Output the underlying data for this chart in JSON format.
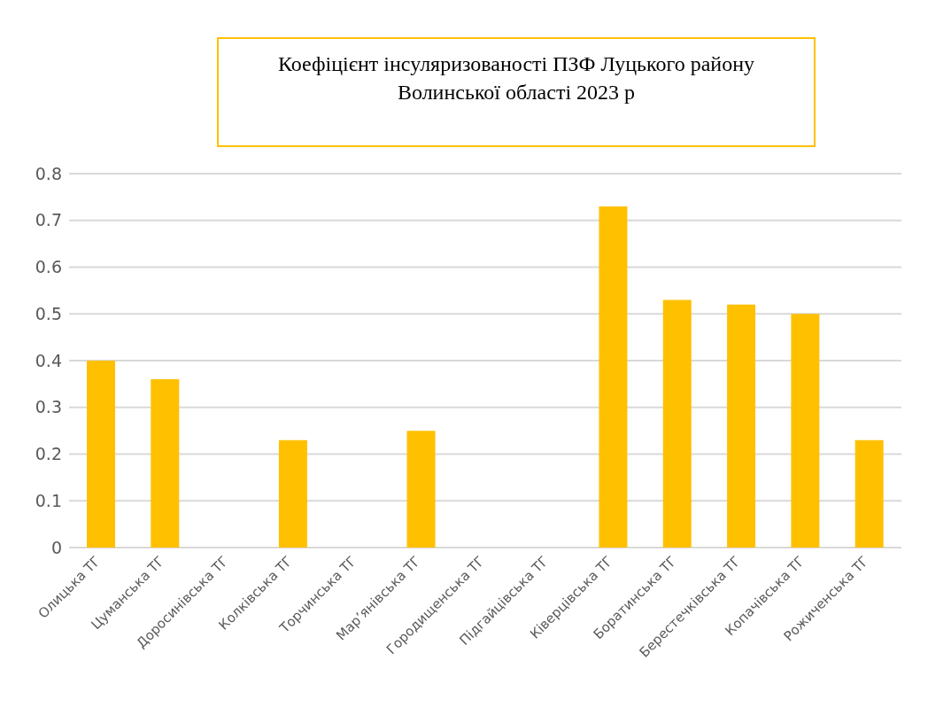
{
  "chart_data": {
    "type": "bar",
    "title": "Коефіцієнт інсуляризованості ПЗФ Луцького району Волинської області 2023 р",
    "categories": [
      "Олицька ТГ",
      "Цуманська ТГ",
      "Доросинівська ТГ",
      "Колківська ТГ",
      "Торчинська ТГ",
      "Мар’янівська ТГ",
      "Городищенська ТГ",
      "Підгайцівська ТГ",
      "Ківерцівська ТГ",
      "Боратинська ТГ",
      "Берестечківська ТГ",
      "Копачівська ТГ",
      "Рожиченська ТГ"
    ],
    "values": [
      0.4,
      0.36,
      0,
      0.23,
      0,
      0.25,
      0,
      0,
      0.73,
      0.53,
      0.52,
      0.5,
      0.23
    ],
    "color": "#ffc000",
    "ylim": [
      0,
      0.8
    ],
    "yticks": [
      0,
      0.1,
      0.2,
      0.3,
      0.4,
      0.5,
      0.6,
      0.7,
      0.8
    ],
    "grid": "y",
    "legend": false
  }
}
